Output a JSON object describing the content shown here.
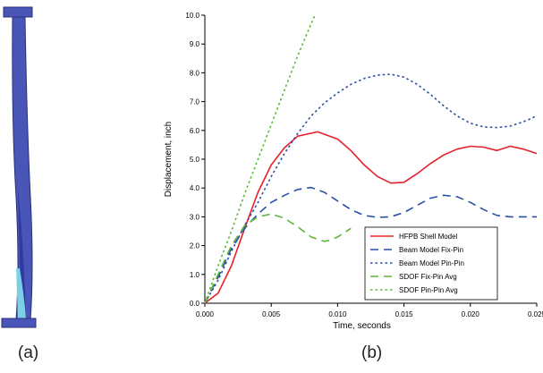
{
  "figure": {
    "panel_a_label": "(a)",
    "panel_b_label": "(b)"
  },
  "colors": {
    "beam_body": "#4a55b8",
    "beam_edge": "#2b2f7a",
    "beam_inner": "#2a3aa0",
    "beam_highlight": "#7fd6e8"
  },
  "chart_data": {
    "type": "line",
    "title": "",
    "xlabel": "Time, seconds",
    "ylabel": "Displacement, inch",
    "xlim": [
      0,
      0.025
    ],
    "ylim": [
      0,
      10
    ],
    "xticks": [
      "0.000",
      "0.005",
      "0.010",
      "0.015",
      "0.020",
      "0.025"
    ],
    "yticks": [
      "0.0",
      "1.0",
      "2.0",
      "3.0",
      "4.0",
      "5.0",
      "6.0",
      "7.0",
      "8.0",
      "9.0",
      "10.0"
    ],
    "grid": false,
    "legend_position": "bottom-right",
    "series": [
      {
        "name": "HFPB Shell Model",
        "color": "#e8202a",
        "dash": "solid",
        "x": [
          0,
          0.001,
          0.002,
          0.003,
          0.004,
          0.005,
          0.006,
          0.007,
          0.0085,
          0.01,
          0.011,
          0.012,
          0.013,
          0.014,
          0.015,
          0.016,
          0.017,
          0.018,
          0.019,
          0.02,
          0.021,
          0.022,
          0.023,
          0.024,
          0.025
        ],
        "y": [
          0,
          0.35,
          1.3,
          2.6,
          3.85,
          4.8,
          5.4,
          5.8,
          5.95,
          5.7,
          5.3,
          4.8,
          4.4,
          4.17,
          4.2,
          4.5,
          4.85,
          5.15,
          5.35,
          5.45,
          5.42,
          5.3,
          5.45,
          5.35,
          5.2
        ]
      },
      {
        "name": "Beam Model Fix-Pin",
        "color": "#2a4fa8",
        "dash": "long-dash",
        "x": [
          0,
          0.001,
          0.002,
          0.003,
          0.004,
          0.005,
          0.006,
          0.007,
          0.008,
          0.009,
          0.01,
          0.011,
          0.012,
          0.013,
          0.014,
          0.015,
          0.016,
          0.017,
          0.018,
          0.019,
          0.02,
          0.021,
          0.022,
          0.023,
          0.024,
          0.025
        ],
        "y": [
          0,
          0.9,
          1.9,
          2.6,
          3.1,
          3.5,
          3.75,
          3.95,
          4.02,
          3.85,
          3.55,
          3.25,
          3.05,
          2.98,
          3.0,
          3.15,
          3.4,
          3.65,
          3.75,
          3.7,
          3.5,
          3.25,
          3.05,
          3.0,
          3.0,
          3.0
        ]
      },
      {
        "name": "Beam Model Pin-Pin",
        "color": "#2a4fa8",
        "dash": "short-dash",
        "x": [
          0,
          0.001,
          0.002,
          0.003,
          0.004,
          0.005,
          0.006,
          0.007,
          0.008,
          0.009,
          0.01,
          0.011,
          0.012,
          0.013,
          0.014,
          0.015,
          0.016,
          0.017,
          0.018,
          0.019,
          0.02,
          0.021,
          0.022,
          0.023,
          0.024,
          0.025
        ],
        "y": [
          0,
          0.8,
          1.8,
          2.7,
          3.5,
          4.4,
          5.2,
          5.9,
          6.5,
          6.95,
          7.3,
          7.6,
          7.8,
          7.92,
          7.95,
          7.85,
          7.6,
          7.25,
          6.85,
          6.5,
          6.25,
          6.12,
          6.1,
          6.15,
          6.3,
          6.5
        ]
      },
      {
        "name": "SDOF Fix-Pin Avg",
        "color": "#5db53a",
        "dash": "long-dash",
        "x": [
          0,
          0.001,
          0.002,
          0.003,
          0.004,
          0.005,
          0.006,
          0.007,
          0.008,
          0.009,
          0.0095,
          0.01,
          0.011
        ],
        "y": [
          0,
          1.0,
          2.0,
          2.7,
          3.0,
          3.1,
          2.95,
          2.65,
          2.3,
          2.15,
          2.2,
          2.3,
          2.6
        ]
      },
      {
        "name": "SDOF Pin-Pin Avg",
        "color": "#5db53a",
        "dash": "short-dash",
        "x": [
          0,
          0.001,
          0.002,
          0.003,
          0.004,
          0.005,
          0.006,
          0.007,
          0.008,
          0.0083
        ],
        "y": [
          0,
          1.3,
          2.5,
          3.8,
          5.0,
          6.2,
          7.4,
          8.6,
          9.7,
          10.0
        ]
      }
    ]
  }
}
